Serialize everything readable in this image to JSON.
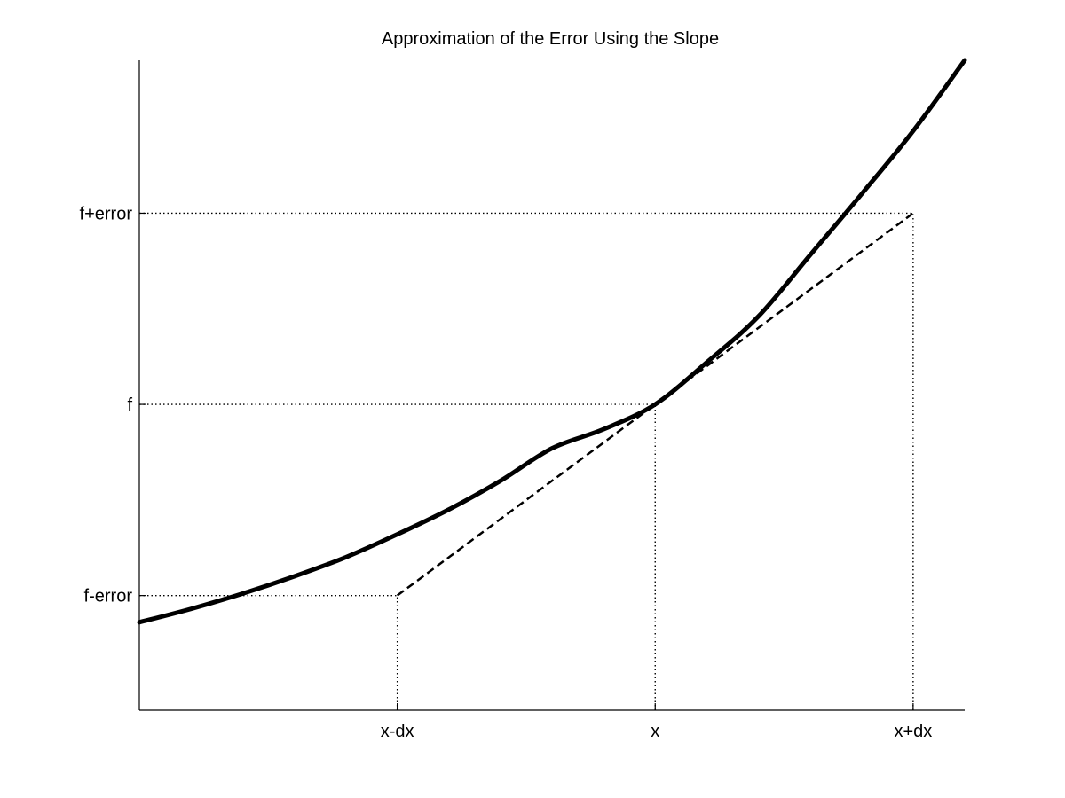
{
  "chart_data": {
    "type": "line",
    "title": "Approximation of the Error Using the Slope",
    "xlabel": "",
    "ylabel": "",
    "xlim": [
      -1,
      2.2
    ],
    "ylim": [
      -1.6,
      1.8
    ],
    "grid": false,
    "x_ticks": [
      {
        "value": 0,
        "label": "x-dx"
      },
      {
        "value": 1,
        "label": "x"
      },
      {
        "value": 2,
        "label": "x+dx"
      }
    ],
    "y_ticks": [
      {
        "value": -1,
        "label": "f-error"
      },
      {
        "value": 0,
        "label": "f"
      },
      {
        "value": 1,
        "label": "f+error"
      }
    ],
    "series": [
      {
        "style": "solid-thick",
        "x": [
          -1.0,
          -0.8,
          -0.6,
          -0.4,
          -0.2,
          0.0,
          0.2,
          0.4,
          0.6,
          0.8,
          1.0,
          1.2,
          1.4,
          1.6,
          1.8,
          2.0,
          2.2
        ],
        "y": [
          -1.14,
          -1.07,
          -0.99,
          -0.9,
          -0.8,
          -0.68,
          -0.55,
          -0.4,
          -0.23,
          -0.13,
          0.0,
          0.22,
          0.46,
          0.78,
          1.1,
          1.43,
          1.8
        ]
      },
      {
        "style": "dashed",
        "x": [
          0,
          2
        ],
        "y": [
          -1,
          1
        ]
      }
    ],
    "reference_lines": [
      {
        "kind": "horizontal",
        "y": -1,
        "x_to": 0
      },
      {
        "kind": "horizontal",
        "y": 0,
        "x_to": 1
      },
      {
        "kind": "horizontal",
        "y": 1,
        "x_to": 2
      },
      {
        "kind": "vertical",
        "x": 0,
        "y_to": -1
      },
      {
        "kind": "vertical",
        "x": 1,
        "y_to": 0
      },
      {
        "kind": "vertical",
        "x": 2,
        "y_to": 1
      }
    ],
    "colors": {
      "curve": "#000000",
      "tangent": "#000000",
      "axes": "#000000",
      "guides": "#000000"
    }
  }
}
